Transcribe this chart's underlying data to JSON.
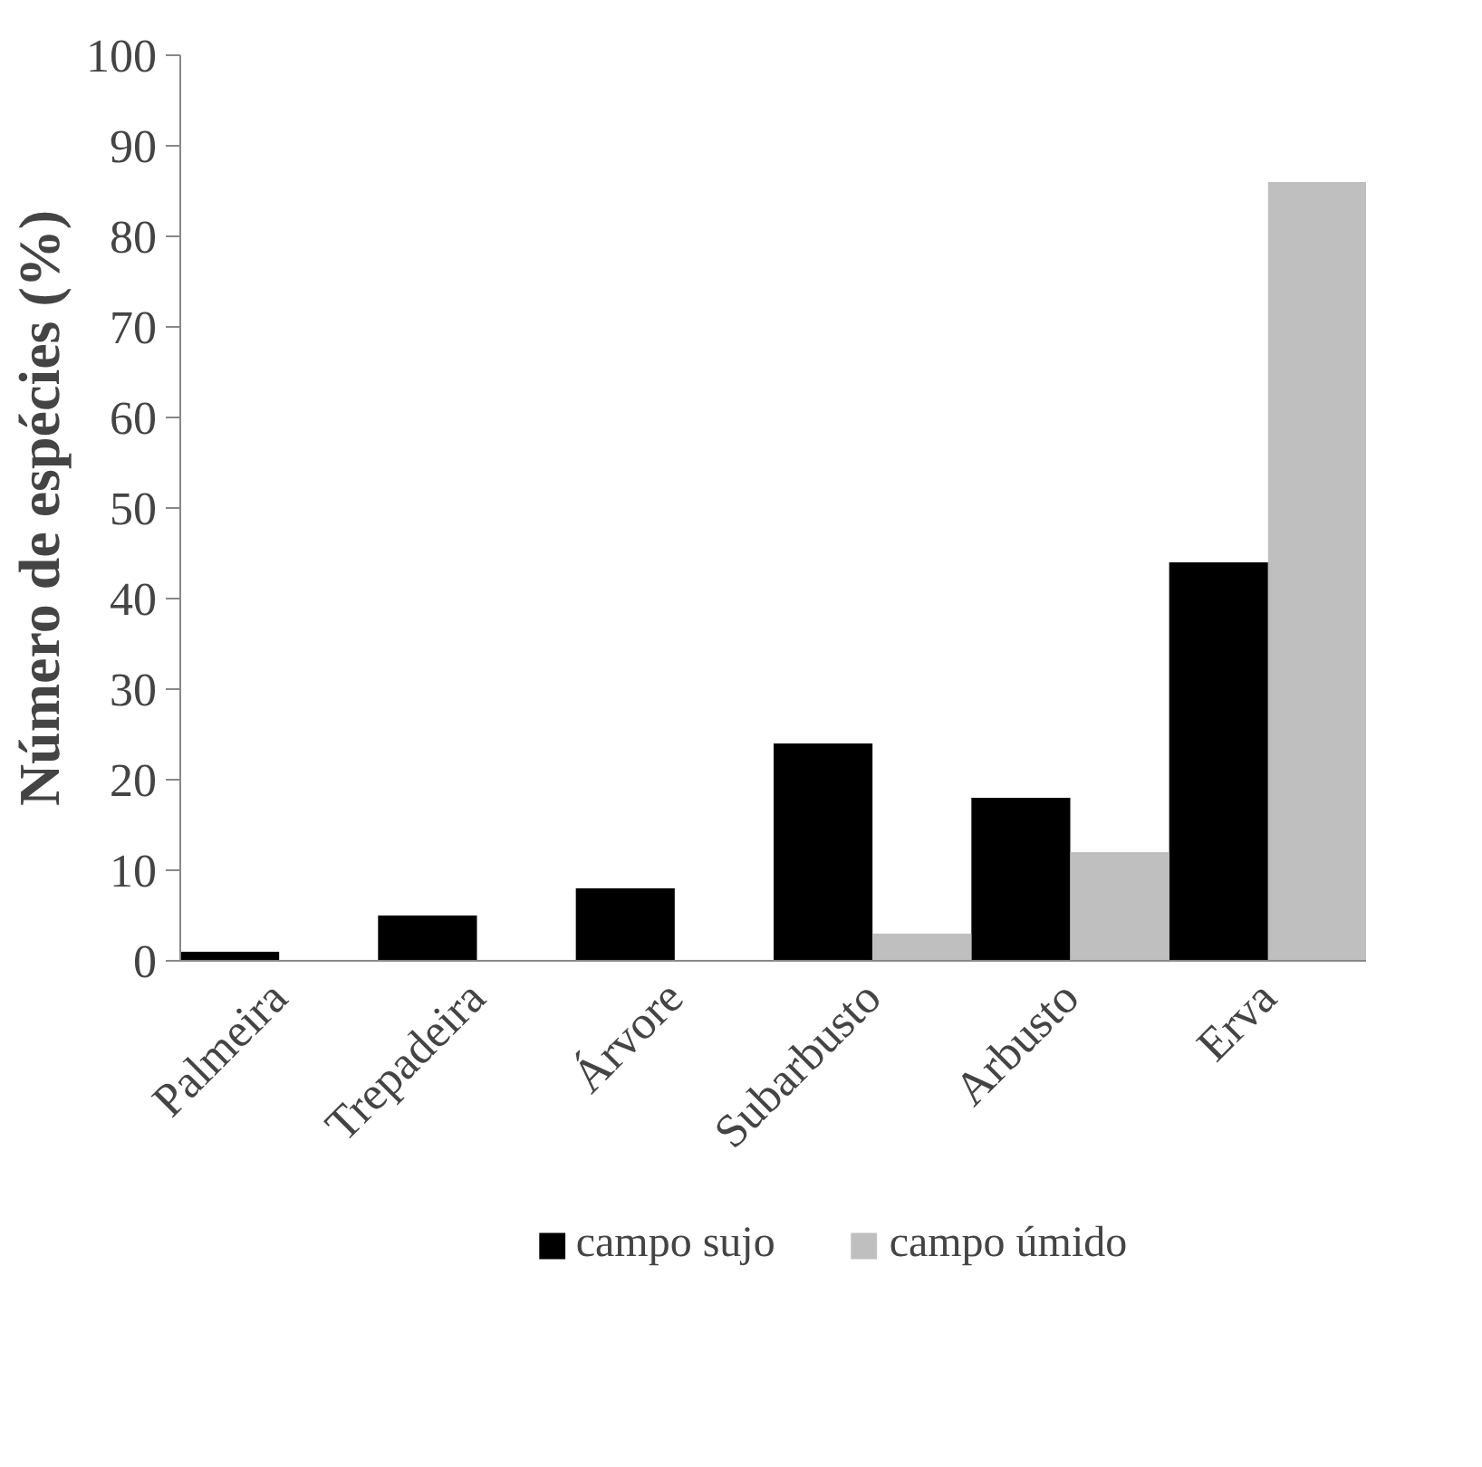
{
  "chart_data": {
    "type": "bar",
    "ylabel": "Número de espécies (%)",
    "categories": [
      "Palmeira",
      "Trepadeira",
      "Árvore",
      "Subarbusto",
      "Arbusto",
      "Erva"
    ],
    "series": [
      {
        "name": "campo sujo",
        "color": "#000000",
        "values": [
          1,
          5,
          8,
          24,
          18,
          44
        ]
      },
      {
        "name": "campo úmido",
        "color": "#bfbfbf",
        "values": [
          0,
          0,
          0,
          3,
          12,
          86
        ]
      }
    ],
    "ylim": [
      0,
      100
    ],
    "yticks": [
      0,
      10,
      20,
      30,
      40,
      50,
      60,
      70,
      80,
      90,
      100
    ],
    "grid": false,
    "legend": "bottom"
  }
}
